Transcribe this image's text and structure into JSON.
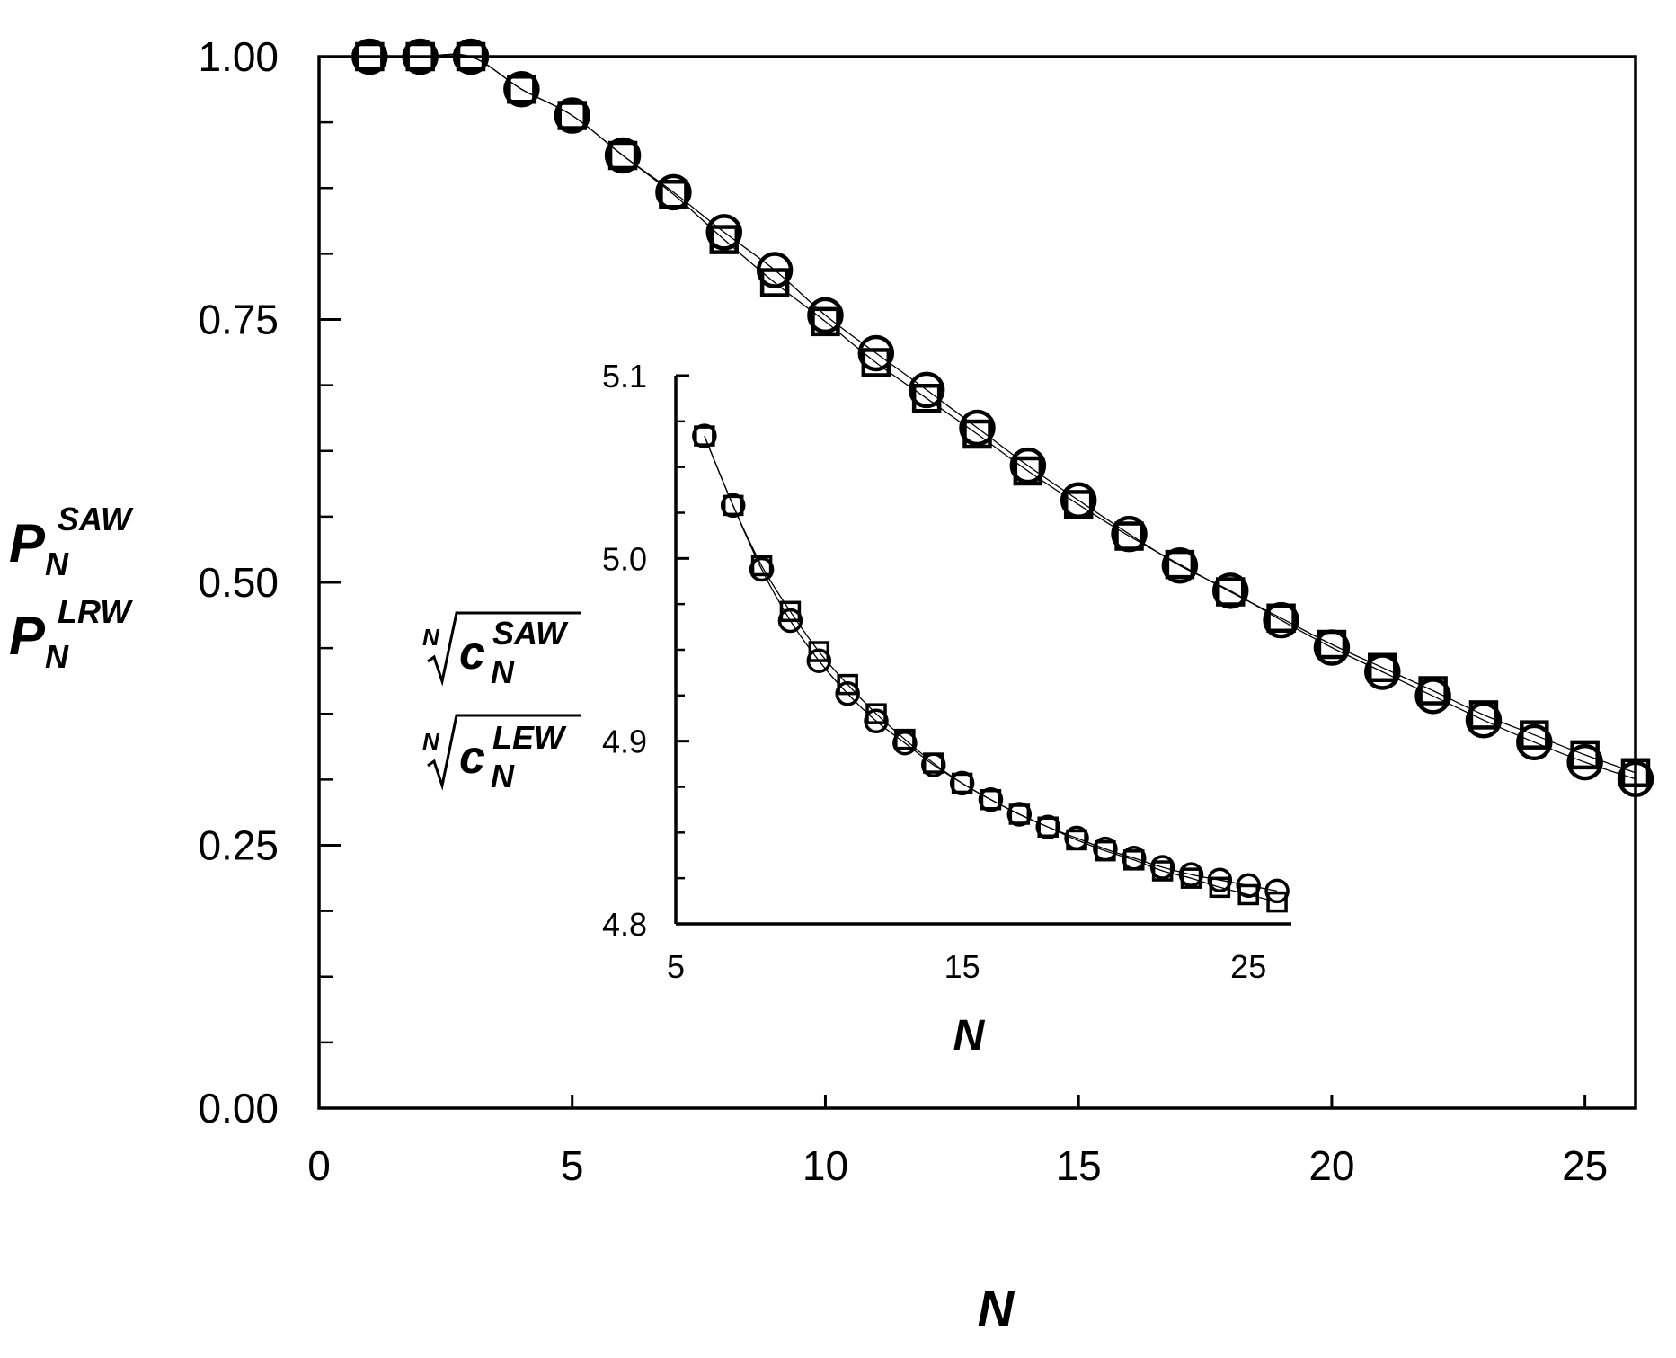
{
  "chart_data": [
    {
      "id": "main",
      "type": "scatter",
      "xlabel": "N",
      "ylabel_lines": [
        {
          "base": "P",
          "sub": "N",
          "sup": "SAW"
        },
        {
          "base": "P",
          "sub": "N",
          "sup": "LRW"
        }
      ],
      "xlim": [
        0,
        26
      ],
      "ylim": [
        0,
        1
      ],
      "xticks": [
        0,
        5,
        10,
        15,
        20,
        25
      ],
      "xtick_labels": [
        "0",
        "5",
        "10",
        "15",
        "20",
        "25"
      ],
      "yticks": [
        0,
        0.25,
        0.5,
        0.75,
        1.0
      ],
      "ytick_labels": [
        "0.00",
        "0.25",
        "0.50",
        "0.75",
        "1.00"
      ],
      "grid": false,
      "series": [
        {
          "marker": "circle",
          "x": [
            1,
            2,
            3,
            4,
            5,
            6,
            7,
            8,
            9,
            10,
            11,
            12,
            13,
            14,
            15,
            16,
            17,
            18,
            19,
            20,
            21,
            22,
            23,
            24,
            25,
            26
          ],
          "y": [
            1.0,
            1.0,
            1.0,
            0.969,
            0.944,
            0.906,
            0.871,
            0.833,
            0.797,
            0.754,
            0.718,
            0.683,
            0.647,
            0.611,
            0.578,
            0.546,
            0.516,
            0.492,
            0.464,
            0.438,
            0.415,
            0.392,
            0.369,
            0.348,
            0.329,
            0.313
          ]
        },
        {
          "marker": "square",
          "x": [
            1,
            2,
            3,
            4,
            5,
            6,
            7,
            8,
            9,
            10,
            11,
            12,
            13,
            14,
            15,
            16,
            17,
            18,
            19,
            20,
            21,
            22,
            23,
            24,
            25,
            26
          ],
          "y": [
            1.0,
            1.0,
            1.0,
            0.969,
            0.944,
            0.906,
            0.869,
            0.826,
            0.785,
            0.748,
            0.709,
            0.675,
            0.641,
            0.606,
            0.574,
            0.544,
            0.517,
            0.491,
            0.466,
            0.441,
            0.419,
            0.397,
            0.374,
            0.355,
            0.336,
            0.319
          ]
        }
      ]
    },
    {
      "id": "inset",
      "type": "scatter",
      "xlabel": "N",
      "ylabel_lines": [
        {
          "root": "N",
          "base": "c",
          "sub": "N",
          "sup": "SAW"
        },
        {
          "root": "N",
          "base": "c",
          "sub": "N",
          "sup": "LEW"
        }
      ],
      "xlim": [
        5,
        26.5
      ],
      "ylim": [
        4.8,
        5.1
      ],
      "xticks": [
        5,
        15,
        25
      ],
      "xtick_labels": [
        "5",
        "15",
        "25"
      ],
      "yticks": [
        4.8,
        4.9,
        5.0,
        5.1
      ],
      "ytick_labels": [
        "4.8",
        "4.9",
        "5.0",
        "5.1"
      ],
      "grid": false,
      "series": [
        {
          "marker": "circle",
          "x": [
            6,
            7,
            8,
            9,
            10,
            11,
            12,
            13,
            14,
            15,
            16,
            17,
            18,
            19,
            20,
            21,
            22,
            23,
            24,
            25,
            26
          ],
          "y": [
            5.067,
            5.029,
            4.994,
            4.966,
            4.944,
            4.926,
            4.911,
            4.899,
            4.887,
            4.877,
            4.868,
            4.86,
            4.853,
            4.847,
            4.841,
            4.836,
            4.831,
            4.827,
            4.824,
            4.821,
            4.818
          ]
        },
        {
          "marker": "square",
          "x": [
            6,
            7,
            8,
            9,
            10,
            11,
            12,
            13,
            14,
            15,
            16,
            17,
            18,
            19,
            20,
            21,
            22,
            23,
            24,
            25,
            26
          ],
          "y": [
            5.067,
            5.029,
            4.996,
            4.971,
            4.949,
            4.931,
            4.915,
            4.901,
            4.888,
            4.877,
            4.868,
            4.86,
            4.853,
            4.846,
            4.84,
            4.835,
            4.829,
            4.825,
            4.82,
            4.816,
            4.812
          ]
        }
      ]
    }
  ]
}
